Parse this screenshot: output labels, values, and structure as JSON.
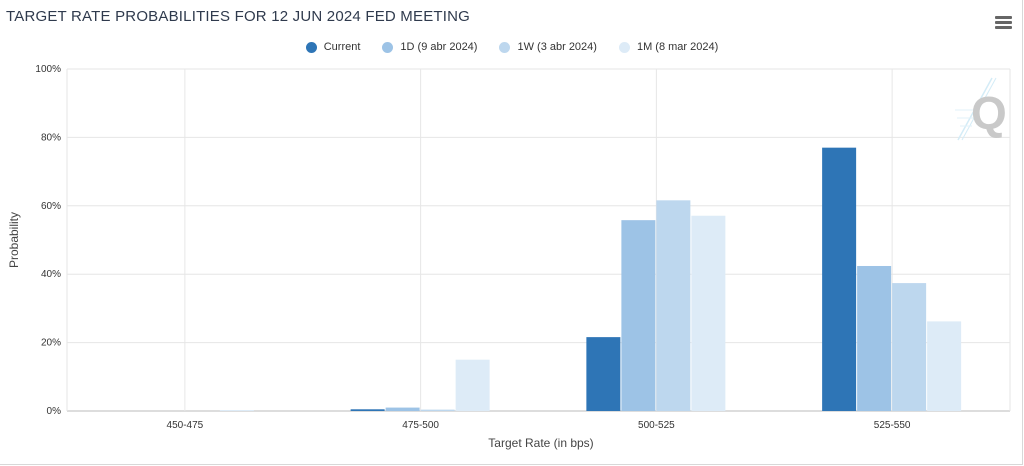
{
  "header": {
    "title": "TARGET RATE PROBABILITIES FOR 12 JUN 2024 FED MEETING",
    "menu_icon": "hamburger-menu-icon",
    "watermark_letter": "Q"
  },
  "chart_data": {
    "type": "bar",
    "title": "TARGET RATE PROBABILITIES FOR 12 JUN 2024 FED MEETING",
    "xlabel": "Target Rate (in bps)",
    "ylabel": "Probability",
    "categories": [
      "450-475",
      "475-500",
      "500-525",
      "525-550"
    ],
    "ylim": [
      0,
      100
    ],
    "yticks": [
      0,
      20,
      40,
      60,
      80,
      100
    ],
    "ytick_labels": [
      "0%",
      "20%",
      "40%",
      "60%",
      "80%",
      "100%"
    ],
    "grid": true,
    "legend_position": "top-center",
    "series": [
      {
        "name": "Current",
        "color": "#2e75b6",
        "values": [
          0.0,
          0.5,
          21.6,
          77.0
        ]
      },
      {
        "name": "1D (9 abr 2024)",
        "color": "#9dc3e6",
        "values": [
          0.0,
          1.0,
          55.8,
          42.4
        ]
      },
      {
        "name": "1W (3 abr 2024)",
        "color": "#bdd7ee",
        "values": [
          0.0,
          0.4,
          61.6,
          37.4
        ]
      },
      {
        "name": "1M (8 mar 2024)",
        "color": "#ddebf7",
        "values": [
          0.2,
          15.0,
          57.1,
          26.2
        ]
      }
    ]
  }
}
